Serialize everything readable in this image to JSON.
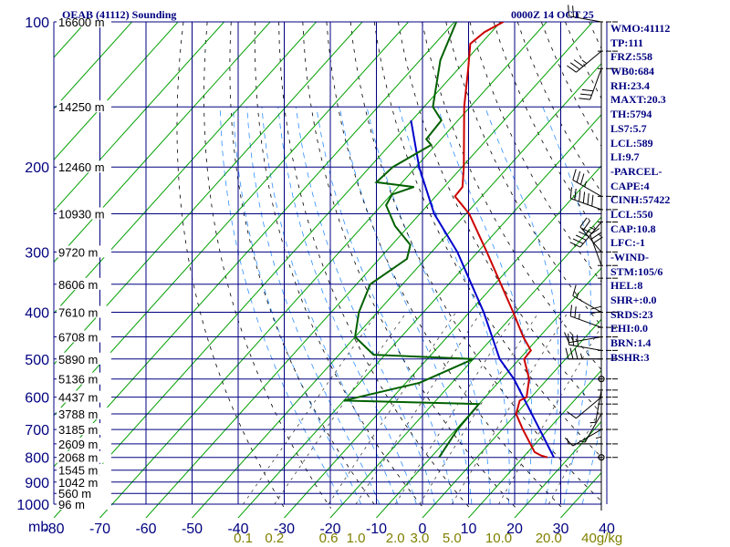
{
  "header": {
    "title": "OEAB (41112) Sounding",
    "datetime": "0000Z 14 OCT 25"
  },
  "stats": [
    "WMO:41112",
    "TP:111",
    "FRZ:558",
    "WB0:684",
    "RH:23.4",
    "MAXT:20.3",
    "TH:5794",
    "LS7:5.7",
    "LCL:589",
    "LI:9.7",
    "-PARCEL-",
    "CAPE:4",
    "CINH:57422",
    "LCL:550",
    "CAP:10.8",
    "LFC:-1",
    "-WIND-",
    "STM:105/6",
    "HEL:8",
    "SHR+:0.0",
    "SRDS:23",
    "EHI:0.0",
    "BRN:1.4",
    "BSHR:3"
  ],
  "colors": {
    "isobar": "#000080",
    "isotherm": "#00a000",
    "dry_adiabat": "#000000",
    "moist_adiabat": "#3090ff",
    "temperature": "#cc0000",
    "dewpoint": "#006000",
    "parcel": "#0000cc",
    "axis_text": "#000080",
    "mixing_ratio_text": "#808000"
  },
  "chart_data": {
    "type": "line",
    "xlabel": "",
    "ylabel": "mb",
    "pressure_ticks": [
      100,
      200,
      300,
      400,
      500,
      600,
      700,
      800,
      900,
      1000
    ],
    "temperature_ticks": [
      -80,
      -70,
      -60,
      -50,
      -40,
      -30,
      -20,
      -10,
      0,
      10,
      20,
      30,
      40
    ],
    "mixing_ratio_labels": [
      {
        "label": "0.1",
        "value": 0.1
      },
      {
        "label": "0.2",
        "value": 0.2
      },
      {
        "label": "0.6",
        "value": 0.6
      },
      {
        "label": "1.0",
        "value": 1.0
      },
      {
        "label": "2.0",
        "value": 2.0
      },
      {
        "label": "3.0",
        "value": 3.0
      },
      {
        "label": "5.0",
        "value": 5.0
      },
      {
        "label": "10.0",
        "value": 10.0
      },
      {
        "label": "20.0",
        "value": 20.0
      },
      {
        "label": "40g/kg",
        "value": 40.0
      }
    ],
    "height_labels": [
      {
        "label": "16600 m",
        "p": 100
      },
      {
        "label": "14250 m",
        "p": 150
      },
      {
        "label": "12460 m",
        "p": 200
      },
      {
        "label": "10930 m",
        "p": 250
      },
      {
        "label": "9720 m",
        "p": 300
      },
      {
        "label": "8606 m",
        "p": 350
      },
      {
        "label": "7610 m",
        "p": 400
      },
      {
        "label": "6708 m",
        "p": 450
      },
      {
        "label": "5890 m",
        "p": 500
      },
      {
        "label": "5136 m",
        "p": 550
      },
      {
        "label": "4437 m",
        "p": 600
      },
      {
        "label": "3788 m",
        "p": 650
      },
      {
        "label": "3185 m",
        "p": 700
      },
      {
        "label": "2609 m",
        "p": 750
      },
      {
        "label": "2068 m",
        "p": 800
      },
      {
        "label": "1545 m",
        "p": 850
      },
      {
        "label": "1042 m",
        "p": 900
      },
      {
        "label": "560 m",
        "p": 950
      },
      {
        "label": "96 m",
        "p": 1000
      }
    ],
    "temperature_profile": [
      {
        "p": 800,
        "t": 15.3
      },
      {
        "p": 793,
        "t": 13.6
      },
      {
        "p": 780,
        "t": 11.5
      },
      {
        "p": 700,
        "t": 4.5
      },
      {
        "p": 650,
        "t": 0.0
      },
      {
        "p": 610,
        "t": -1.8
      },
      {
        "p": 600,
        "t": -1.0
      },
      {
        "p": 550,
        "t": -4.0
      },
      {
        "p": 500,
        "t": -9.0
      },
      {
        "p": 480,
        "t": -9.2
      },
      {
        "p": 450,
        "t": -13.5
      },
      {
        "p": 400,
        "t": -20.5
      },
      {
        "p": 300,
        "t": -38.0
      },
      {
        "p": 250,
        "t": -49.3
      },
      {
        "p": 230,
        "t": -55.8
      },
      {
        "p": 220,
        "t": -56.0
      },
      {
        "p": 200,
        "t": -59.6
      },
      {
        "p": 150,
        "t": -71.3
      },
      {
        "p": 125,
        "t": -77.9
      },
      {
        "p": 111,
        "t": -82.3
      },
      {
        "p": 105,
        "t": -81.5
      },
      {
        "p": 100,
        "t": -79.4
      }
    ],
    "dewpoint_profile": [
      {
        "p": 800,
        "t": -8.2
      },
      {
        "p": 700,
        "t": -9.7
      },
      {
        "p": 620,
        "t": -10.0
      },
      {
        "p": 610,
        "t": -40.0
      },
      {
        "p": 560,
        "t": -27.0
      },
      {
        "p": 500,
        "t": -20.0
      },
      {
        "p": 490,
        "t": -42.5
      },
      {
        "p": 450,
        "t": -50.0
      },
      {
        "p": 400,
        "t": -54.0
      },
      {
        "p": 350,
        "t": -57.0
      },
      {
        "p": 310,
        "t": -54.0
      },
      {
        "p": 290,
        "t": -56.0
      },
      {
        "p": 265,
        "t": -63.0
      },
      {
        "p": 240,
        "t": -69.0
      },
      {
        "p": 228,
        "t": -69.8
      },
      {
        "p": 220,
        "t": -66.5
      },
      {
        "p": 215,
        "t": -75.6
      },
      {
        "p": 200,
        "t": -75.0
      },
      {
        "p": 180,
        "t": -71.0
      },
      {
        "p": 175,
        "t": -73.2
      },
      {
        "p": 160,
        "t": -73.6
      },
      {
        "p": 150,
        "t": -78.1
      },
      {
        "p": 120,
        "t": -85.6
      },
      {
        "p": 100,
        "t": -89.6
      }
    ],
    "parcel_profile": [
      {
        "p": 800,
        "t": 16.7
      },
      {
        "p": 550,
        "t": -7.3
      },
      {
        "p": 500,
        "t": -14.3
      },
      {
        "p": 400,
        "t": -26.9
      },
      {
        "p": 300,
        "t": -44.4
      },
      {
        "p": 250,
        "t": -56.9
      },
      {
        "p": 200,
        "t": -69.3
      },
      {
        "p": 160,
        "t": -80.2
      }
    ],
    "winds": [
      {
        "p": 100,
        "direction": 280,
        "speed": 25
      },
      {
        "p": 115,
        "direction": 230,
        "speed": 35
      },
      {
        "p": 125,
        "direction": 200,
        "speed": 30
      },
      {
        "p": 230,
        "direction": 300,
        "speed": 35
      },
      {
        "p": 245,
        "direction": 290,
        "speed": 60
      },
      {
        "p": 260,
        "direction": 220,
        "speed": 55
      },
      {
        "p": 300,
        "direction": 320,
        "speed": 25
      },
      {
        "p": 320,
        "direction": 340,
        "speed": 30
      },
      {
        "p": 340,
        "direction": 180,
        "speed": 20
      },
      {
        "p": 400,
        "direction": 300,
        "speed": 15
      },
      {
        "p": 430,
        "direction": 290,
        "speed": 25
      },
      {
        "p": 450,
        "direction": 260,
        "speed": 15
      },
      {
        "p": 480,
        "direction": 280,
        "speed": 30
      },
      {
        "p": 500,
        "direction": 270,
        "speed": 35
      },
      {
        "p": 550,
        "direction": 0,
        "speed": 0
      },
      {
        "p": 580,
        "direction": 190,
        "speed": 5
      },
      {
        "p": 600,
        "direction": 230,
        "speed": 10
      },
      {
        "p": 620,
        "direction": 180,
        "speed": 5
      },
      {
        "p": 650,
        "direction": 210,
        "speed": 5
      },
      {
        "p": 700,
        "direction": 240,
        "speed": 10
      },
      {
        "p": 750,
        "direction": 270,
        "speed": 5
      },
      {
        "p": 800,
        "direction": 0,
        "speed": 0
      }
    ]
  }
}
